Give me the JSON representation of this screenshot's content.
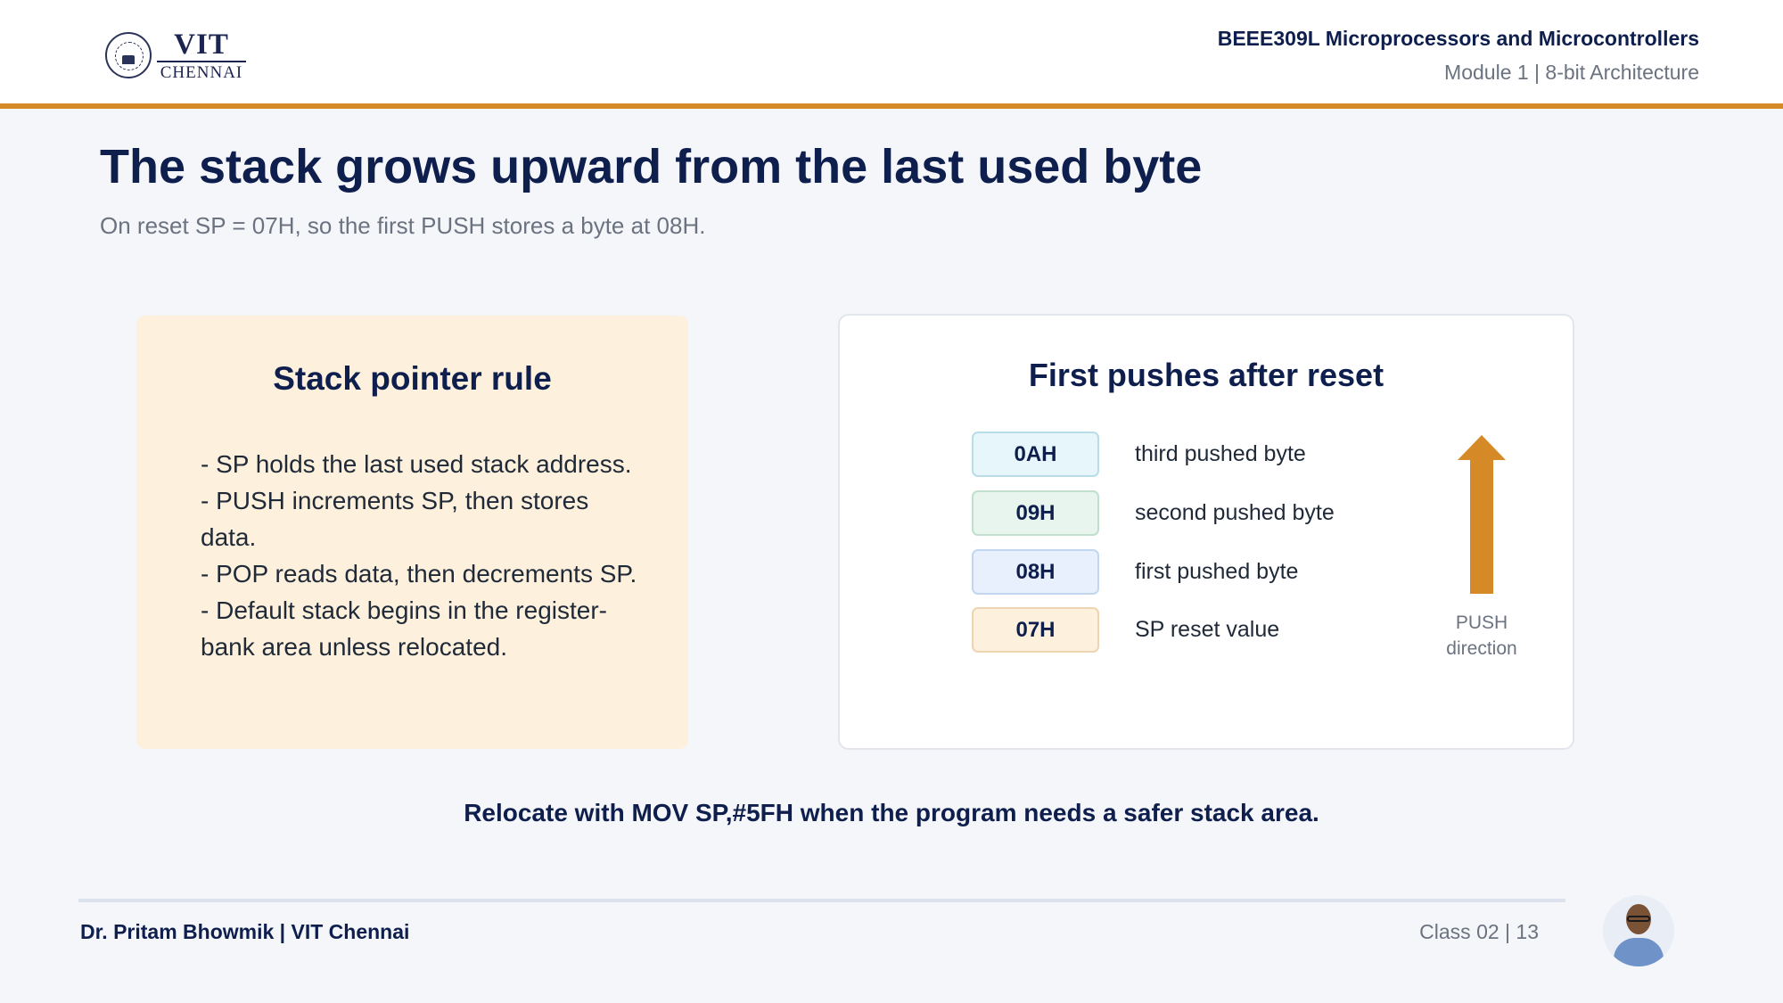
{
  "header": {
    "logo": {
      "name": "VIT",
      "campus": "CHENNAI"
    },
    "course": "BEEE309L Microprocessors and Microcontrollers",
    "module": "Module 1 | 8-bit Architecture"
  },
  "slide": {
    "title": "The stack grows upward from the last used byte",
    "subtitle": "On reset SP = 07H, so the first PUSH stores a byte at 08H."
  },
  "rule_card": {
    "title": "Stack pointer rule",
    "items": [
      "- SP holds the last used stack address.",
      "- PUSH increments SP, then stores data.",
      "- POP reads data, then decrements SP.",
      "- Default stack begins in the register-bank area unless relocated."
    ]
  },
  "push_card": {
    "title": "First pushes after reset",
    "rows": [
      {
        "addr": "0AH",
        "desc": "third pushed byte",
        "fill": "#e6f6fa",
        "border": "#b9dde7"
      },
      {
        "addr": "09H",
        "desc": "second pushed byte",
        "fill": "#e8f5ee",
        "border": "#c0e0cd"
      },
      {
        "addr": "08H",
        "desc": "first pushed byte",
        "fill": "#e7f0fc",
        "border": "#c3d6ef"
      },
      {
        "addr": "07H",
        "desc": "SP reset value",
        "fill": "#fdf0dc",
        "border": "#ecd5b0"
      }
    ],
    "arrow_label_line1": "PUSH",
    "arrow_label_line2": "direction",
    "arrow_color": "#d68a27",
    "arrow_icon": "up-arrow-icon"
  },
  "note": "Relocate with MOV SP,#5FH when the program needs a safer stack area.",
  "footer": {
    "author": "Dr. Pritam Bhowmik | VIT Chennai",
    "class_info": "Class 02  |  13"
  },
  "colors": {
    "accent": "#d68a27",
    "navy": "#0f1f4d",
    "muted": "#6b7280"
  }
}
